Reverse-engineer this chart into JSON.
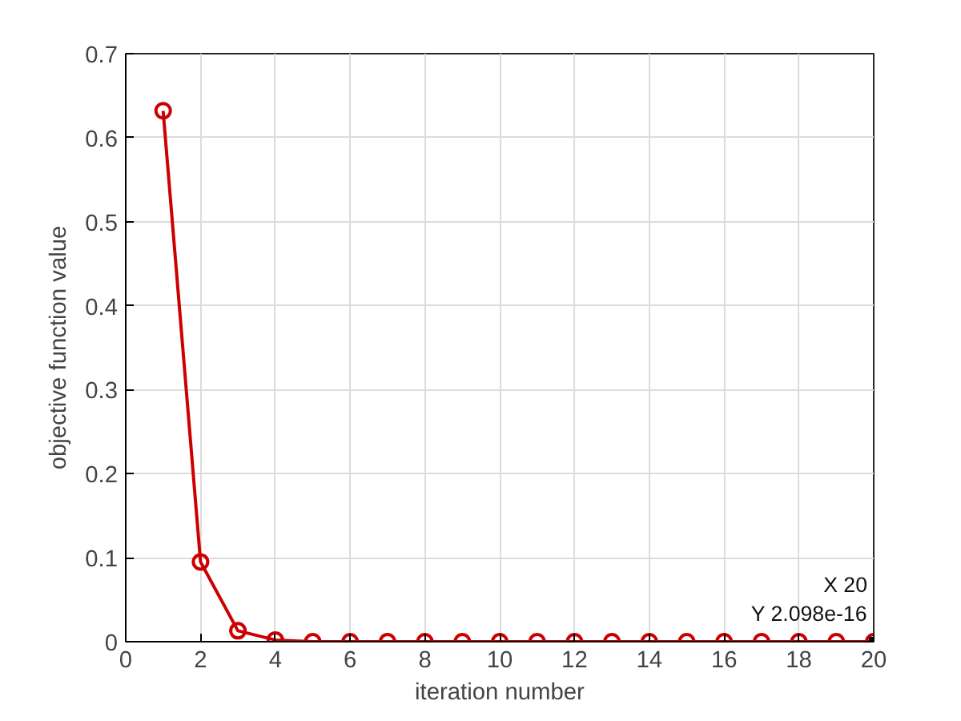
{
  "chart_data": {
    "type": "line",
    "xlabel": "iteration number",
    "ylabel": "objective function value",
    "x": [
      1,
      2,
      3,
      4,
      5,
      6,
      7,
      8,
      9,
      10,
      11,
      12,
      13,
      14,
      15,
      16,
      17,
      18,
      19,
      20
    ],
    "series": [
      {
        "color": "#cc0000",
        "values": [
          0.632,
          0.095,
          0.013,
          0.002,
          0,
          0,
          0,
          0,
          0,
          0,
          0,
          0,
          0,
          0,
          0,
          0,
          0,
          0,
          0,
          2.098e-16
        ]
      }
    ],
    "xlim": [
      0,
      20
    ],
    "xticks": [
      0,
      2,
      4,
      6,
      8,
      10,
      12,
      14,
      16,
      18,
      20
    ],
    "ylim": [
      0,
      0.7
    ],
    "yticks": [
      0,
      0.1,
      0.2,
      0.3,
      0.4,
      0.5,
      0.6,
      0.7
    ],
    "grid": true,
    "marker": "circle",
    "line_style": "solid",
    "annotations": [
      {
        "text": "X 20\nY 2.098e-16",
        "x": 20,
        "y": 2.098e-16
      }
    ]
  }
}
